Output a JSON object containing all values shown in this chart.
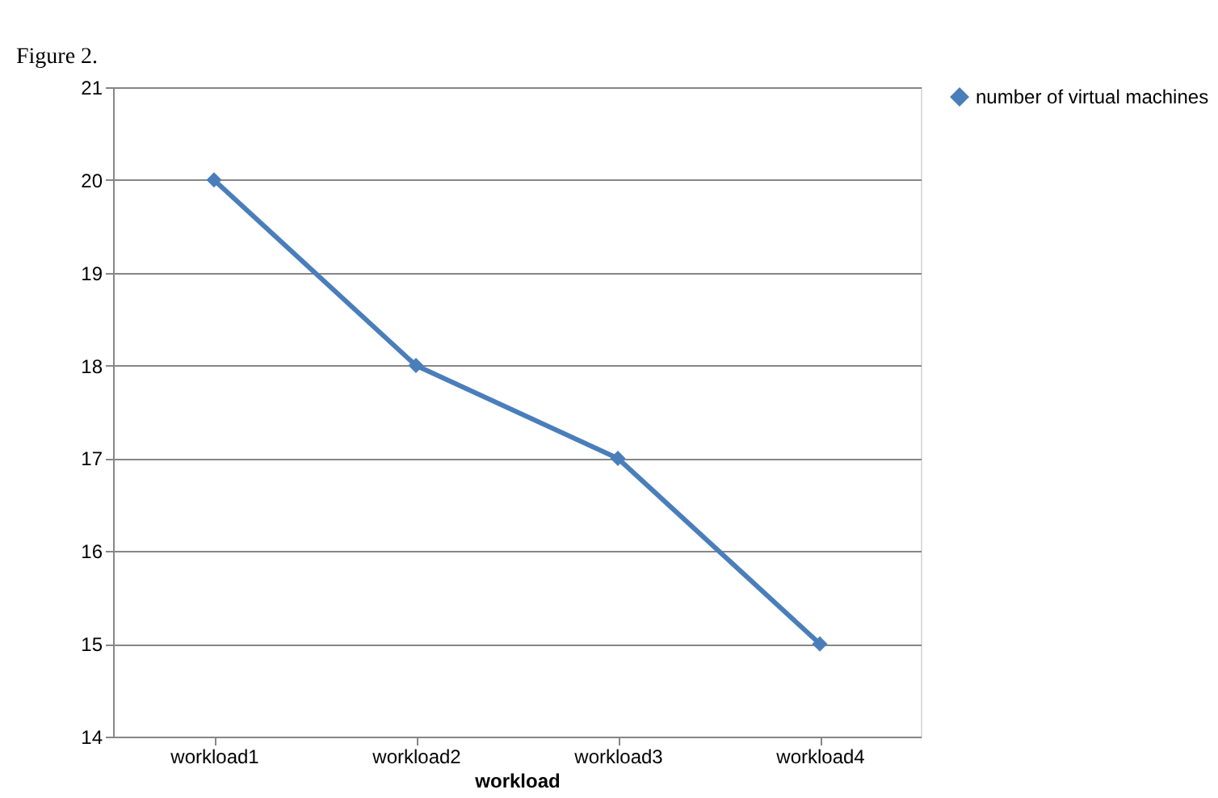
{
  "chart_data": {
    "type": "line",
    "annotations": [
      "Figure 2."
    ],
    "xlabel": "workload",
    "categories": [
      "workload1",
      "workload2",
      "workload3",
      "workload4"
    ],
    "series": [
      {
        "name": "number of virtual machines",
        "color": "#4a7ebb",
        "values": [
          20,
          18,
          17,
          15
        ]
      }
    ],
    "ylim": [
      14,
      21
    ],
    "yticks": [
      14,
      15,
      16,
      17,
      18,
      19,
      20,
      21
    ],
    "grid": "y",
    "legend": "right",
    "marker": "diamond",
    "line_style": "solid"
  }
}
